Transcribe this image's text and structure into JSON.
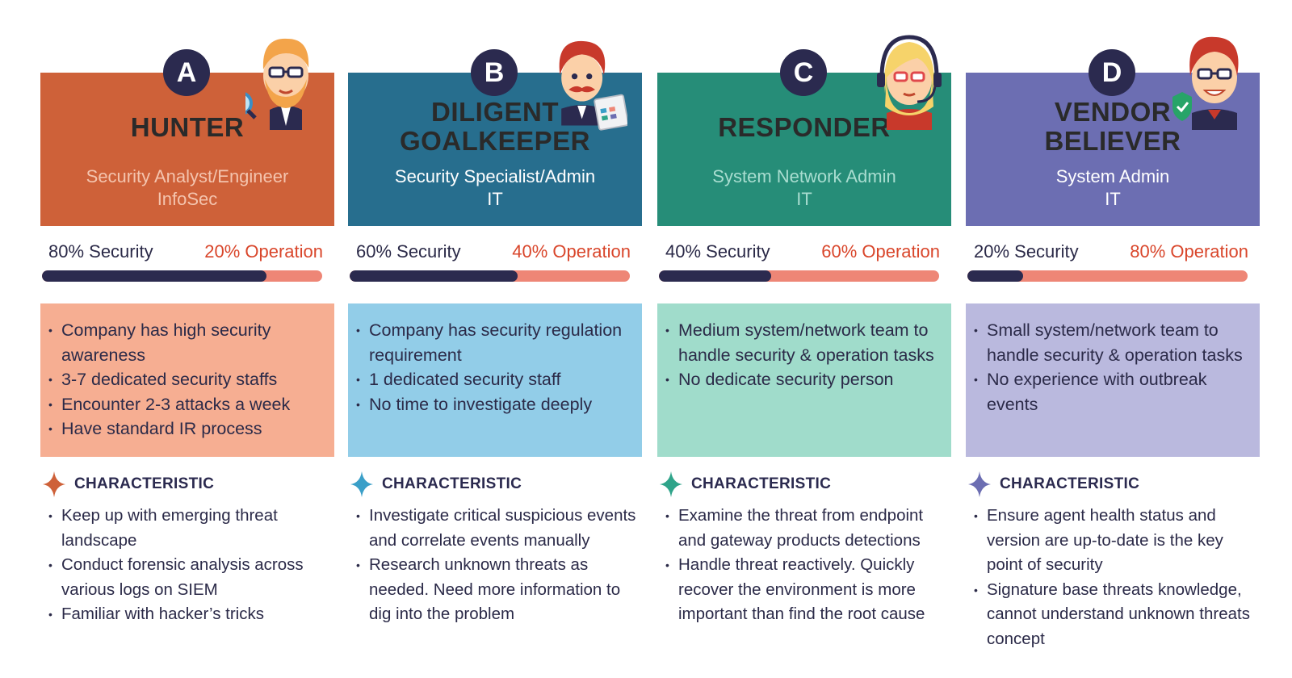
{
  "personas": [
    {
      "letter": "A",
      "name_lines": [
        "HUNTER"
      ],
      "role_lines": [
        "Security Analyst/Engineer",
        "InfoSec"
      ],
      "security_label": "80% Security",
      "operation_label": "20% Operation",
      "security_share": 0.8,
      "facts": [
        "Company has high security awareness",
        "3-7 dedicated security staffs",
        "Encounter 2-3 attacks a week",
        "Have standard IR process"
      ],
      "characteristic_title": "CHARACTERISTIC",
      "characteristics": [
        "Keep up with emerging threat landscape",
        "Conduct forensic analysis across various logs on SIEM",
        "Familiar with hacker’s tricks"
      ],
      "colors": {
        "header": "#ce6139",
        "role_text": "#f4c4ae",
        "facts_bg": "#f6ae92",
        "sparkle": "#ce6139"
      }
    },
    {
      "letter": "B",
      "name_lines": [
        "DILIGENT",
        "GOALKEEPER"
      ],
      "role_lines": [
        "Security Specialist/Admin",
        "IT"
      ],
      "security_label": "60% Security",
      "operation_label": "40% Operation",
      "security_share": 0.6,
      "facts": [
        "Company has security regulation requirement",
        "1 dedicated security staff",
        "No time to investigate deeply"
      ],
      "characteristic_title": "CHARACTERISTIC",
      "characteristics": [
        "Investigate critical suspicious events and correlate events manually",
        "Research unknown threats as needed. Need more information to dig into the problem"
      ],
      "colors": {
        "header": "#276e8e",
        "role_text": "#ffffff",
        "facts_bg": "#92cde8",
        "sparkle": "#3a9fc8"
      }
    },
    {
      "letter": "C",
      "name_lines": [
        "RESPONDER"
      ],
      "role_lines": [
        "System Network Admin",
        "IT"
      ],
      "security_label": "40% Security",
      "operation_label": "60% Operation",
      "security_share": 0.4,
      "facts": [
        "Medium system/network team to handle security & operation tasks",
        "No dedicate security person"
      ],
      "characteristic_title": "CHARACTERISTIC",
      "characteristics": [
        "Examine the threat from endpoint and gateway products detections",
        "Handle threat reactively. Quickly recover the  environment is more important than find the root cause"
      ],
      "colors": {
        "header": "#268d78",
        "role_text": "#a9ddd0",
        "facts_bg": "#a0dccb",
        "sparkle": "#2fa48a"
      }
    },
    {
      "letter": "D",
      "name_lines": [
        "VENDOR",
        "BELIEVER"
      ],
      "role_lines": [
        "System Admin",
        "IT"
      ],
      "security_label": "20% Security",
      "operation_label": "80% Operation",
      "security_share": 0.2,
      "facts": [
        "Small system/network team to handle security & operation tasks",
        "No experience with outbreak events"
      ],
      "characteristic_title": "CHARACTERISTIC",
      "characteristics": [
        "Ensure agent health status and version are up-to-date is the key point of security",
        "Signature base threats knowledge, cannot understand unknown threats concept"
      ],
      "colors": {
        "header": "#6c6eb2",
        "role_text": "#ffffff",
        "facts_bg": "#bab9de",
        "sparkle": "#6c6eb2"
      }
    }
  ]
}
